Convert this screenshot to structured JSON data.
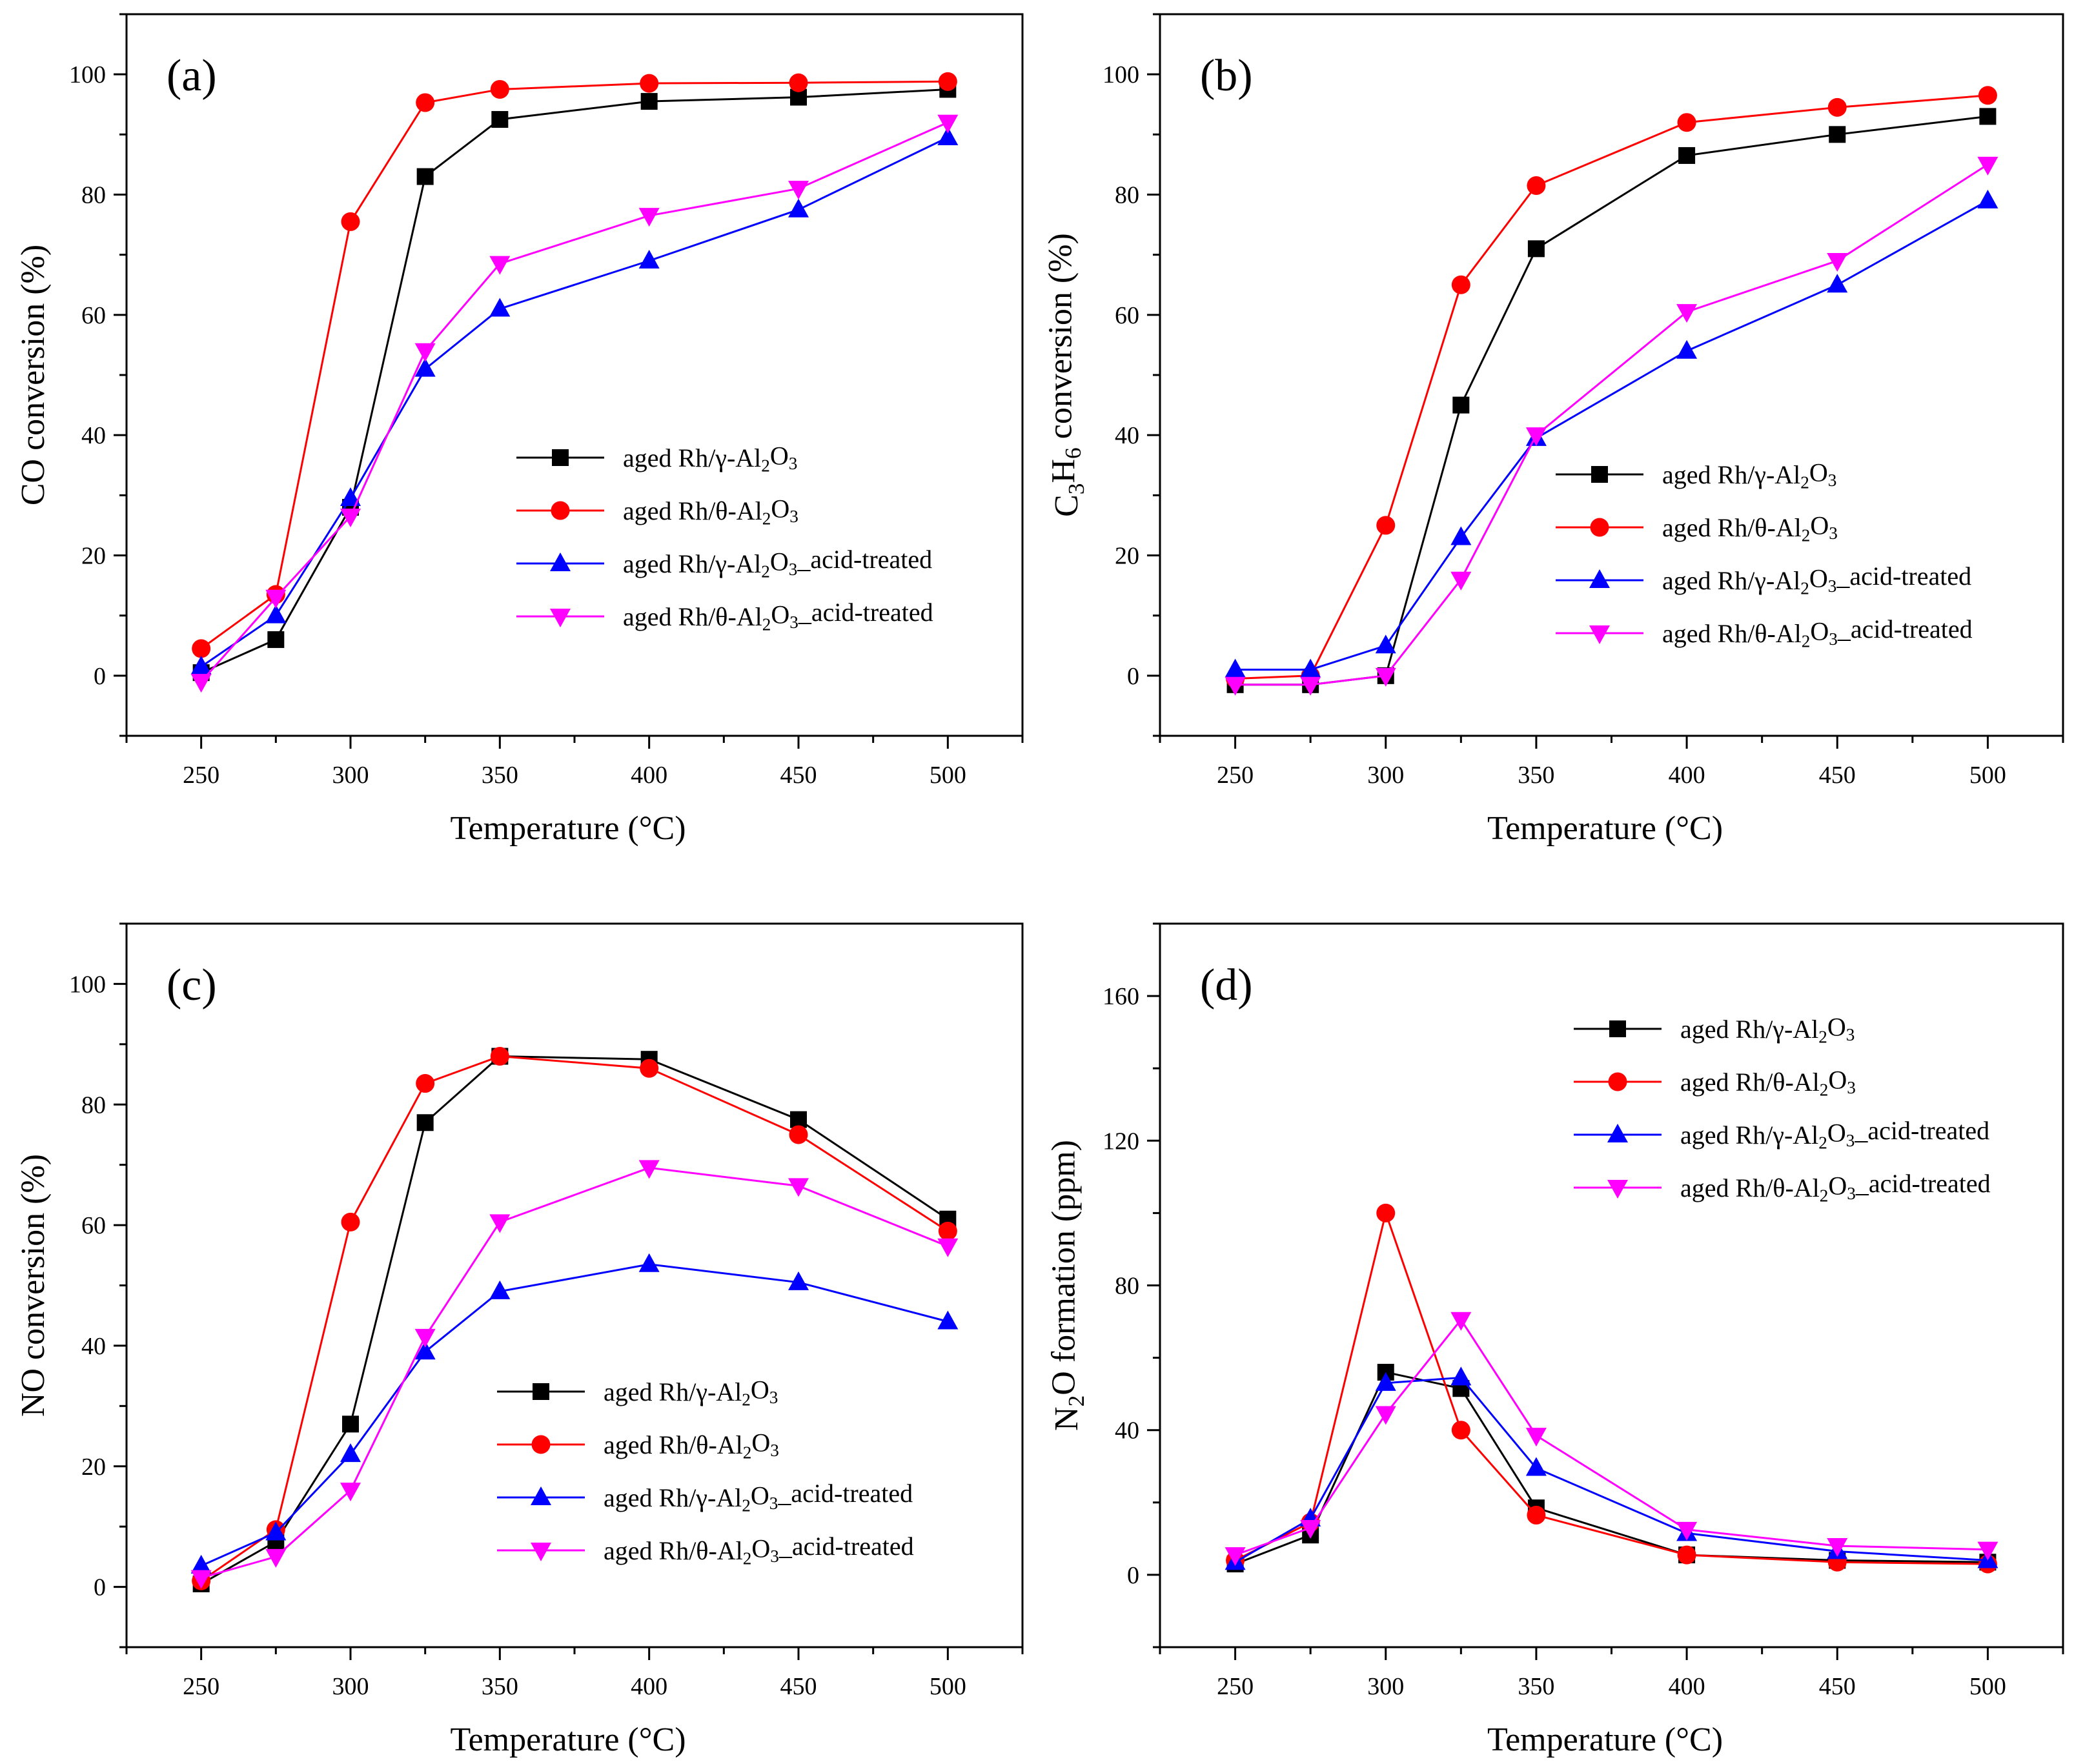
{
  "figure": {
    "series_colors": [
      "#000000",
      "#ff0000",
      "#0000ff",
      "#ff00ff"
    ],
    "series_markers": [
      "square",
      "circle",
      "triangle-up",
      "triangle-down"
    ]
  },
  "chart_data": [
    {
      "type": "line",
      "panel_label": "(a)",
      "xlabel": "Temperature (°C)",
      "ylabel": "CO conversion (%)",
      "x": [
        250,
        275,
        300,
        325,
        350,
        400,
        450,
        500
      ],
      "xlim": [
        225,
        525
      ],
      "ylim": [
        -10,
        110
      ],
      "xticks": [
        250,
        300,
        350,
        400,
        450,
        500
      ],
      "yticks": [
        0,
        20,
        40,
        60,
        80,
        100
      ],
      "legend_position": "center-right",
      "series": [
        {
          "name": "aged Rh/γ-Al2O3",
          "label_parts": [
            "aged Rh/γ-Al",
            "2",
            "O",
            "3",
            ""
          ],
          "values": [
            0.5,
            6,
            28,
            83,
            92.5,
            95.5,
            96.2,
            97.5
          ]
        },
        {
          "name": "aged Rh/θ-Al2O3",
          "label_parts": [
            "aged Rh/θ-Al",
            "2",
            "O",
            "3",
            ""
          ],
          "values": [
            4.5,
            13.5,
            75.5,
            95.3,
            97.5,
            98.5,
            98.6,
            98.8
          ]
        },
        {
          "name": "aged Rh/γ-Al2O3_acid-treated",
          "label_parts": [
            "aged Rh/γ-Al",
            "2",
            "O",
            "3",
            "_acid-treated"
          ],
          "values": [
            1.5,
            10,
            29.5,
            51,
            61,
            69,
            77.5,
            89.5
          ]
        },
        {
          "name": "aged Rh/θ-Al2O3_acid-treated",
          "label_parts": [
            "aged Rh/θ-Al",
            "2",
            "O",
            "3",
            "_acid-treated"
          ],
          "values": [
            -1,
            13,
            26.5,
            54,
            68.5,
            76.5,
            81,
            92
          ]
        }
      ]
    },
    {
      "type": "line",
      "panel_label": "(b)",
      "xlabel": "Temperature (°C)",
      "ylabel": "C3H6 conversion (%)",
      "ylabel_parts": [
        "C",
        "3",
        "H",
        "6",
        " conversion (%)"
      ],
      "x": [
        250,
        275,
        300,
        325,
        350,
        400,
        450,
        500
      ],
      "xlim": [
        225,
        525
      ],
      "ylim": [
        -10,
        110
      ],
      "xticks": [
        250,
        300,
        350,
        400,
        450,
        500
      ],
      "yticks": [
        0,
        20,
        40,
        60,
        80,
        100
      ],
      "legend_position": "center-right",
      "series": [
        {
          "name": "aged Rh/γ-Al2O3",
          "label_parts": [
            "aged Rh/γ-Al",
            "2",
            "O",
            "3",
            ""
          ],
          "values": [
            -1.5,
            -1.5,
            0,
            45,
            71,
            86.5,
            90,
            93
          ]
        },
        {
          "name": "aged Rh/θ-Al2O3",
          "label_parts": [
            "aged Rh/θ-Al",
            "2",
            "O",
            "3",
            ""
          ],
          "values": [
            -0.5,
            0,
            25,
            65,
            81.5,
            92,
            94.5,
            96.5
          ]
        },
        {
          "name": "aged Rh/γ-Al2O3_acid-treated",
          "label_parts": [
            "aged Rh/γ-Al",
            "2",
            "O",
            "3",
            "_acid-treated"
          ],
          "values": [
            1,
            1,
            5,
            23,
            39.5,
            54,
            65,
            79
          ]
        },
        {
          "name": "aged Rh/θ-Al2O3_acid-treated",
          "label_parts": [
            "aged Rh/θ-Al",
            "2",
            "O",
            "3",
            "_acid-treated"
          ],
          "values": [
            -1.5,
            -1.5,
            0,
            16,
            40,
            60.5,
            69,
            85
          ]
        }
      ]
    },
    {
      "type": "line",
      "panel_label": "(c)",
      "xlabel": "Temperature (°C)",
      "ylabel": "NO conversion (%)",
      "x": [
        250,
        275,
        300,
        325,
        350,
        400,
        450,
        500
      ],
      "xlim": [
        225,
        525
      ],
      "ylim": [
        -10,
        110
      ],
      "xticks": [
        250,
        300,
        350,
        400,
        450,
        500
      ],
      "yticks": [
        0,
        20,
        40,
        60,
        80,
        100
      ],
      "legend_position": "lower-right",
      "series": [
        {
          "name": "aged Rh/γ-Al2O3",
          "label_parts": [
            "aged Rh/γ-Al",
            "2",
            "O",
            "3",
            ""
          ],
          "values": [
            0.5,
            7.5,
            27,
            77,
            88,
            87.5,
            77.5,
            61
          ]
        },
        {
          "name": "aged Rh/θ-Al2O3",
          "label_parts": [
            "aged Rh/θ-Al",
            "2",
            "O",
            "3",
            ""
          ],
          "values": [
            1,
            9.5,
            60.5,
            83.5,
            88,
            86,
            75,
            59
          ]
        },
        {
          "name": "aged Rh/γ-Al2O3_acid-treated",
          "label_parts": [
            "aged Rh/γ-Al",
            "2",
            "O",
            "3",
            "_acid-treated"
          ],
          "values": [
            3.5,
            9,
            22,
            39,
            49,
            53.5,
            50.5,
            44
          ]
        },
        {
          "name": "aged Rh/θ-Al2O3_acid-treated",
          "label_parts": [
            "aged Rh/θ-Al",
            "2",
            "O",
            "3",
            "_acid-treated"
          ],
          "values": [
            1.5,
            5,
            16,
            41.5,
            60.5,
            69.5,
            66.5,
            56.5
          ]
        }
      ]
    },
    {
      "type": "line",
      "panel_label": "(d)",
      "xlabel": "Temperature (°C)",
      "ylabel": "N2O formation (ppm)",
      "ylabel_parts": [
        "N",
        "2",
        "O formation (ppm)",
        "",
        ""
      ],
      "x": [
        250,
        275,
        300,
        325,
        350,
        400,
        450,
        500
      ],
      "xlim": [
        225,
        525
      ],
      "ylim": [
        -20,
        180
      ],
      "xticks": [
        250,
        300,
        350,
        400,
        450,
        500
      ],
      "yticks": [
        0,
        40,
        80,
        120,
        160
      ],
      "legend_position": "top-right",
      "series": [
        {
          "name": "aged Rh/γ-Al2O3",
          "label_parts": [
            "aged Rh/γ-Al",
            "2",
            "O",
            "3",
            ""
          ],
          "values": [
            3,
            11,
            56,
            51.5,
            18.5,
            5.5,
            4,
            3.5
          ]
        },
        {
          "name": "aged Rh/θ-Al2O3",
          "label_parts": [
            "aged Rh/θ-Al",
            "2",
            "O",
            "3",
            ""
          ],
          "values": [
            4,
            14.5,
            100,
            40,
            16.5,
            5.5,
            3.5,
            3
          ]
        },
        {
          "name": "aged Rh/γ-Al2O3_acid-treated",
          "label_parts": [
            "aged Rh/γ-Al",
            "2",
            "O",
            "3",
            "_acid-treated"
          ],
          "values": [
            3.5,
            15.5,
            53,
            54.5,
            29.5,
            11.5,
            6.5,
            4
          ]
        },
        {
          "name": "aged Rh/θ-Al2O3_acid-treated",
          "label_parts": [
            "aged Rh/θ-Al",
            "2",
            "O",
            "3",
            "_acid-treated"
          ],
          "values": [
            5.5,
            13,
            44.5,
            70.5,
            38.5,
            12.5,
            8,
            7
          ]
        }
      ]
    }
  ]
}
